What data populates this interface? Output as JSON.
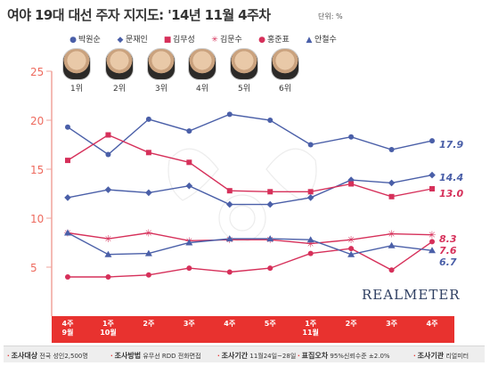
{
  "header": {
    "title": "여야 19대 대선 주자 지지도: '14년 11월 4주차",
    "unit": "단위: %"
  },
  "candidates": [
    {
      "name": "박원순",
      "rank": "1위",
      "marker": "circle",
      "color": "#4a5fa8"
    },
    {
      "name": "문재인",
      "rank": "2위",
      "marker": "diamond",
      "color": "#4a5fa8"
    },
    {
      "name": "김무성",
      "rank": "3위",
      "marker": "square",
      "color": "#d6305a"
    },
    {
      "name": "김문수",
      "rank": "4위",
      "marker": "asterisk",
      "color": "#d6305a"
    },
    {
      "name": "홍준표",
      "rank": "5위",
      "marker": "circle",
      "color": "#d6305a"
    },
    {
      "name": "안철수",
      "rank": "6위",
      "marker": "triangle",
      "color": "#4a5fa8"
    }
  ],
  "chart_data": {
    "type": "line",
    "categories": [
      "4주\n9월",
      "1주\n10월",
      "2주",
      "3주",
      "4주",
      "5주",
      "1주\n11월",
      "2주",
      "3주",
      "4주"
    ],
    "ylim": [
      0,
      25
    ],
    "yticks": [
      5,
      10,
      15,
      20,
      25
    ],
    "grid": false,
    "series": [
      {
        "name": "박원순",
        "values": [
          19.3,
          16.5,
          20.1,
          18.9,
          20.6,
          20.0,
          17.5,
          18.3,
          17.0,
          17.9
        ],
        "color": "#4a5fa8",
        "marker": "circle",
        "end_label": "17.9"
      },
      {
        "name": "문재인",
        "values": [
          12.1,
          12.9,
          12.6,
          13.3,
          11.4,
          11.4,
          12.1,
          13.9,
          13.6,
          14.4
        ],
        "color": "#4a5fa8",
        "marker": "diamond",
        "end_label": "14.4"
      },
      {
        "name": "김무성",
        "values": [
          15.9,
          18.5,
          16.7,
          15.7,
          12.8,
          12.7,
          12.7,
          13.5,
          12.2,
          13.0
        ],
        "color": "#d6305a",
        "marker": "square",
        "end_label": "13.0"
      },
      {
        "name": "김문수",
        "values": [
          8.5,
          7.9,
          8.5,
          7.7,
          7.8,
          7.8,
          7.4,
          7.8,
          8.4,
          8.3
        ],
        "color": "#d6305a",
        "marker": "asterisk",
        "end_label": "8.3"
      },
      {
        "name": "홍준표",
        "values": [
          4.0,
          4.0,
          4.2,
          4.9,
          4.5,
          4.9,
          6.4,
          6.9,
          4.7,
          7.6
        ],
        "color": "#d6305a",
        "marker": "circle",
        "end_label": "7.6"
      },
      {
        "name": "안철수",
        "values": [
          8.5,
          6.3,
          6.4,
          7.5,
          7.9,
          7.9,
          7.8,
          6.3,
          7.2,
          6.7
        ],
        "color": "#4a5fa8",
        "marker": "triangle",
        "end_label": "6.7"
      }
    ]
  },
  "watermark": "REALMETER",
  "footer": [
    {
      "label": "조사대상",
      "value": "전국 성인2,500명"
    },
    {
      "label": "조사방법",
      "value": "유무선 RDD 전화면접"
    },
    {
      "label": "조사기간",
      "value": "11월24일~28일"
    },
    {
      "label": "표집오차",
      "value": "95%신뢰수준 ±2.0%"
    },
    {
      "label": "조사기관",
      "value": "리얼미터"
    }
  ],
  "colors": {
    "accent_red": "#e8322f",
    "axis_red": "#f0a39b",
    "blue_series": "#4a5fa8",
    "red_series": "#d6305a"
  }
}
